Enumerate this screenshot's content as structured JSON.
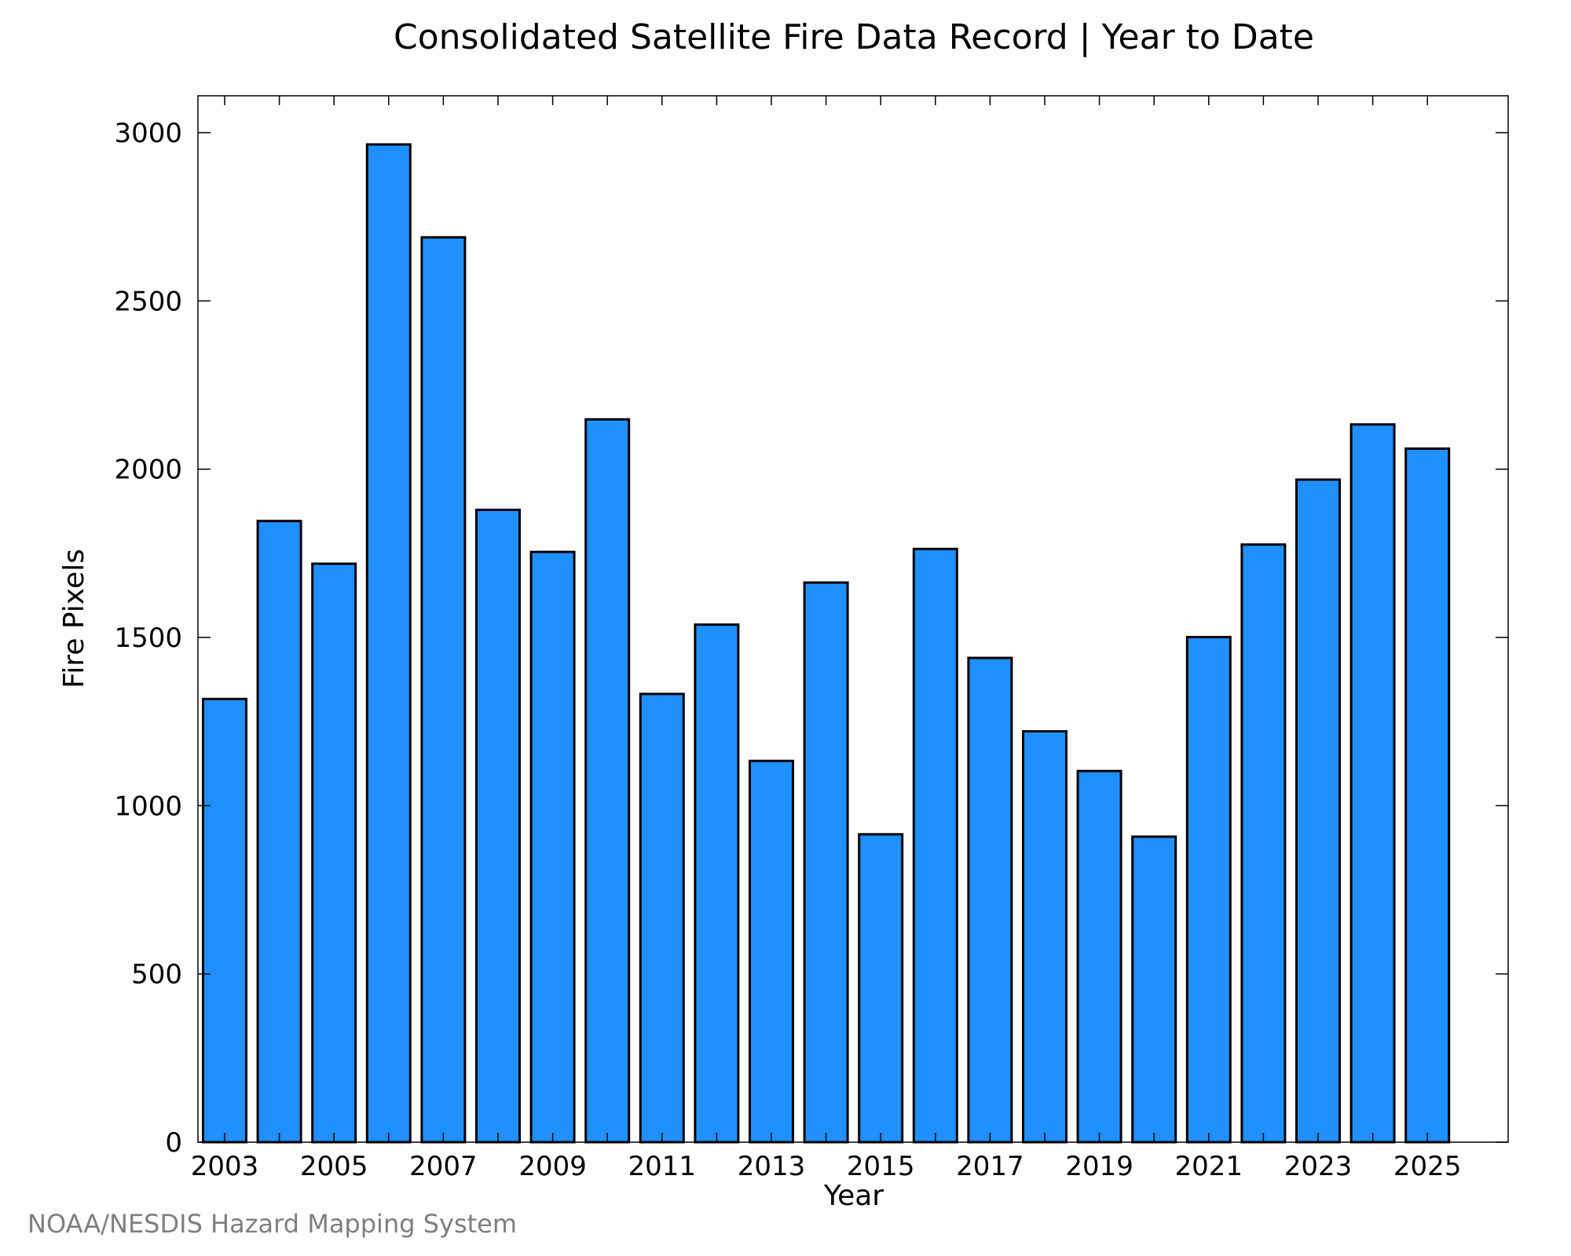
{
  "chart_data": {
    "type": "bar",
    "title": "Consolidated Satellite Fire Data Record | Year to Date",
    "xlabel": "Year",
    "ylabel": "Fire Pixels",
    "categories": [
      "2003",
      "2004",
      "2005",
      "2006",
      "2007",
      "2008",
      "2009",
      "2010",
      "2011",
      "2012",
      "2013",
      "2014",
      "2015",
      "2016",
      "2017",
      "2018",
      "2019",
      "2020",
      "2021",
      "2022",
      "2023",
      "2024",
      "2025"
    ],
    "values": [
      1317,
      1846,
      1719,
      2965,
      2689,
      1879,
      1754,
      2148,
      1332,
      1538,
      1133,
      1663,
      915,
      1763,
      1439,
      1221,
      1103,
      908,
      1501,
      1776,
      1969,
      2133,
      2061
    ],
    "ylim": [
      0,
      3110
    ],
    "yticks": [
      0,
      500,
      1000,
      1500,
      2000,
      2500,
      3000
    ],
    "xtick_labels": [
      "2003",
      "2005",
      "2007",
      "2009",
      "2011",
      "2013",
      "2015",
      "2017",
      "2019",
      "2021",
      "2023",
      "2025"
    ],
    "grid": false,
    "bar_color": "#1e90ff"
  },
  "credit": "NOAA/NESDIS Hazard Mapping System"
}
